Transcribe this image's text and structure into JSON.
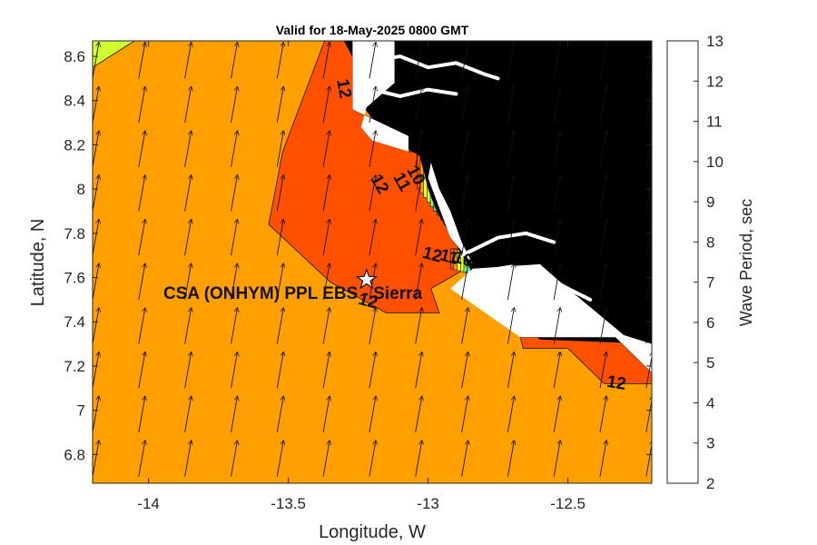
{
  "title": "Valid for 18-May-2025 0800 GMT",
  "xlabel": "Longitude, W",
  "ylabel": "Latitude, N",
  "colorbar_label": "Wave Period, sec",
  "station_label": "CSA (ONHYM) PPL EBS  - Sierra",
  "contour_labels": [
    {
      "text": "12",
      "lon": -13.32,
      "lat": 8.45,
      "rotate": 80
    },
    {
      "text": "12",
      "lon": -13.22,
      "lat": 7.47,
      "rotate": 15
    },
    {
      "text": "12",
      "lon": -12.33,
      "lat": 7.1,
      "rotate": 10
    },
    {
      "text": "12",
      "lon": -13.19,
      "lat": 8.01,
      "rotate": 60
    },
    {
      "text": "11",
      "lon": -13.11,
      "lat": 8.02,
      "rotate": 60
    },
    {
      "text": "10",
      "lon": -13.06,
      "lat": 8.05,
      "rotate": 60
    },
    {
      "text": "12",
      "lon": -12.99,
      "lat": 7.68,
      "rotate": 15
    },
    {
      "text": "11",
      "lon": -12.93,
      "lat": 7.67,
      "rotate": 15
    },
    {
      "text": "10",
      "lon": -12.88,
      "lat": 7.66,
      "rotate": 15
    }
  ],
  "chart_data": {
    "type": "filled-contour-map",
    "xlim": [
      -14.2,
      -12.2
    ],
    "ylim": [
      6.67,
      8.67
    ],
    "xticks": [
      -14,
      -13.5,
      -13,
      -12.5
    ],
    "xtick_labels": [
      "-14",
      "-13.5",
      "-13",
      "-12.5"
    ],
    "yticks": [
      6.8,
      7.0,
      7.2,
      7.4,
      7.6,
      7.8,
      8.0,
      8.2,
      8.4,
      8.6
    ],
    "ytick_labels": [
      "6.8",
      "7",
      "7.2",
      "7.4",
      "7.6",
      "7.8",
      "8",
      "8.2",
      "8.4",
      "8.6"
    ],
    "colorbar": {
      "levels": [
        2,
        3,
        4,
        5,
        6,
        7,
        8,
        9,
        10,
        11,
        12,
        13
      ],
      "tick_labels": [
        "2",
        "3",
        "4",
        "5",
        "6",
        "7",
        "8",
        "9",
        "10",
        "11",
        "12",
        "13"
      ],
      "colors": [
        "#00008f",
        "#0000d0",
        "#0040ff",
        "#0090ff",
        "#00d0ff",
        "#30ffd0",
        "#80ff80",
        "#d0ff30",
        "#ffff00",
        "#ffa000",
        "#ff5000",
        "#ff0000"
      ]
    },
    "background_value": 11.5,
    "regions": [
      {
        "value": 12.5,
        "polygon": [
          [
            -13.37,
            8.67
          ],
          [
            -13.3,
            8.67
          ],
          [
            -13.27,
            8.6
          ],
          [
            -13.27,
            8.36
          ],
          [
            -13.07,
            8.24
          ],
          [
            -13.07,
            8.17
          ],
          [
            -13.0,
            8.17
          ],
          [
            -12.92,
            7.78
          ],
          [
            -12.84,
            7.66
          ],
          [
            -12.92,
            7.6
          ],
          [
            -12.99,
            7.55
          ],
          [
            -12.96,
            7.44
          ],
          [
            -13.15,
            7.44
          ],
          [
            -13.35,
            7.58
          ],
          [
            -13.57,
            7.84
          ],
          [
            -13.52,
            8.17
          ]
        ]
      },
      {
        "value": 12.5,
        "polygon": [
          [
            -12.67,
            7.33
          ],
          [
            -12.33,
            7.33
          ],
          [
            -12.2,
            7.17
          ],
          [
            -12.2,
            7.12
          ],
          [
            -12.37,
            7.12
          ],
          [
            -12.5,
            7.28
          ],
          [
            -12.66,
            7.28
          ]
        ]
      },
      {
        "value": 9.5,
        "polygon": [
          [
            -14.2,
            8.67
          ],
          [
            -14.05,
            8.67
          ],
          [
            -14.2,
            8.55
          ]
        ]
      }
    ],
    "land": [
      {
        "polygon": [
          [
            -13.3,
            8.67
          ],
          [
            -12.2,
            8.67
          ],
          [
            -12.2,
            7.3
          ],
          [
            -12.6,
            7.32
          ],
          [
            -12.8,
            7.52
          ],
          [
            -12.84,
            7.62
          ],
          [
            -12.9,
            7.75
          ],
          [
            -12.97,
            7.9
          ],
          [
            -13.0,
            8.0
          ],
          [
            -13.03,
            8.15
          ],
          [
            -13.1,
            8.2
          ],
          [
            -13.16,
            8.25
          ],
          [
            -13.2,
            8.32
          ],
          [
            -13.25,
            8.4
          ],
          [
            -13.25,
            8.55
          ]
        ]
      }
    ],
    "white_gaps": [
      {
        "polygon": [
          [
            -13.27,
            8.67
          ],
          [
            -13.12,
            8.67
          ],
          [
            -13.12,
            8.48
          ],
          [
            -13.22,
            8.37
          ],
          [
            -13.24,
            8.28
          ],
          [
            -13.2,
            8.22
          ],
          [
            -13.07,
            8.17
          ],
          [
            -13.07,
            8.24
          ],
          [
            -13.27,
            8.36
          ]
        ]
      },
      {
        "polygon": [
          [
            -12.99,
            8.12
          ],
          [
            -12.96,
            8.0
          ],
          [
            -12.92,
            7.9
          ],
          [
            -12.88,
            7.76
          ],
          [
            -12.84,
            7.66
          ],
          [
            -12.92,
            7.78
          ],
          [
            -13.0,
            8.05
          ]
        ]
      },
      {
        "polygon": [
          [
            -12.84,
            7.64
          ],
          [
            -12.6,
            7.66
          ],
          [
            -12.5,
            7.55
          ],
          [
            -12.3,
            7.34
          ],
          [
            -12.2,
            7.3
          ],
          [
            -12.2,
            7.17
          ],
          [
            -12.33,
            7.33
          ],
          [
            -12.67,
            7.33
          ],
          [
            -12.75,
            7.4
          ],
          [
            -12.92,
            7.55
          ]
        ]
      }
    ],
    "arrow_field": {
      "lon_start": -14.2,
      "lon_step": 0.165,
      "lat_start": 6.7,
      "lat_step": 0.2,
      "direction_deg_from_north": 10
    },
    "station": {
      "lon": -13.22,
      "lat": 7.59,
      "marker": "star"
    }
  }
}
